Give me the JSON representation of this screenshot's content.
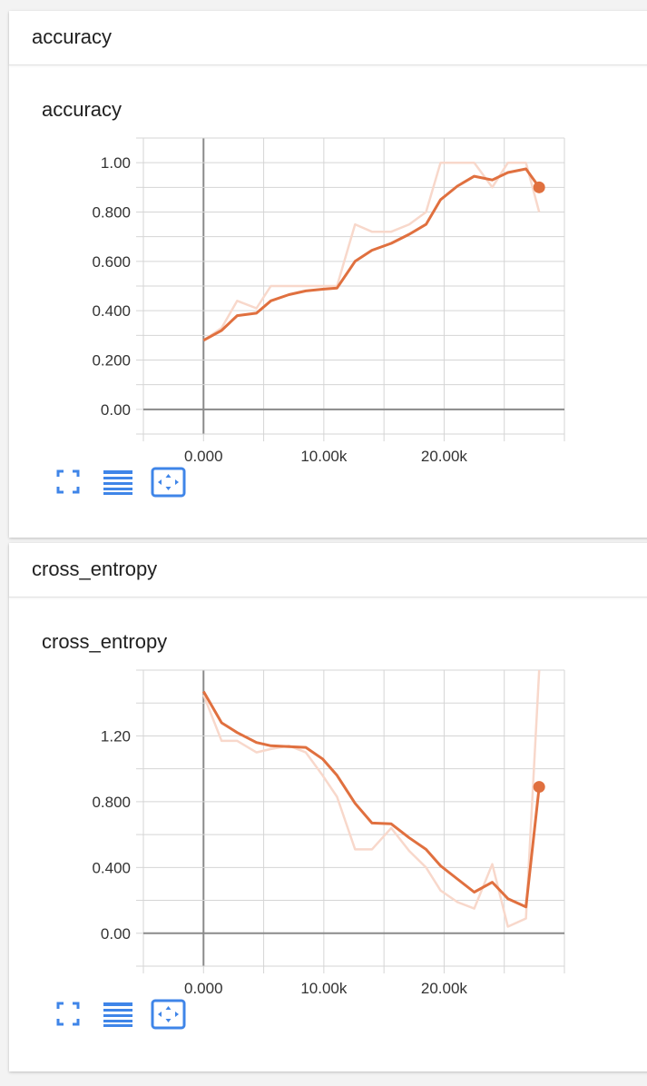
{
  "cards": [
    {
      "header": "accuracy",
      "title": "accuracy"
    },
    {
      "header": "cross_entropy",
      "title": "cross_entropy"
    }
  ],
  "colors": {
    "smoothed": "#e0703f",
    "raw": "#f8d8cb",
    "grid": "#d5d5d5",
    "axis": "#8a8a8a",
    "icon": "#3f85e8"
  },
  "toolbar_icons": [
    "fit-to-screen-icon",
    "data-table-icon",
    "expand-chart-icon"
  ],
  "chart_data": [
    {
      "type": "line",
      "title": "accuracy",
      "xlabel": "",
      "ylabel": "",
      "xlim": [
        -5000,
        30000
      ],
      "ylim": [
        -0.1,
        1.1
      ],
      "x_ticks": [
        0,
        10000,
        20000
      ],
      "x_tick_labels": [
        "0.000",
        "10.00k",
        "20.00k"
      ],
      "y_ticks": [
        0,
        0.2,
        0.4,
        0.6,
        0.8,
        1.0
      ],
      "y_tick_labels": [
        "0.00",
        "0.200",
        "0.400",
        "0.600",
        "0.800",
        "1.00"
      ],
      "grid": true,
      "series": [
        {
          "role": "raw",
          "x": [
            0,
            1500,
            2800,
            4400,
            5600,
            7100,
            8500,
            9900,
            11100,
            12600,
            14000,
            15600,
            17100,
            18500,
            19700,
            21100,
            22500,
            24000,
            25300,
            26800,
            27900
          ],
          "y": [
            0.28,
            0.33,
            0.44,
            0.41,
            0.5,
            0.5,
            0.5,
            0.5,
            0.5,
            0.75,
            0.72,
            0.72,
            0.75,
            0.8,
            1.0,
            1.0,
            1.0,
            0.9,
            1.0,
            1.0,
            0.8
          ]
        },
        {
          "role": "smoothed",
          "x": [
            0,
            1500,
            2800,
            4400,
            5600,
            7100,
            8500,
            9900,
            11100,
            12600,
            14000,
            15600,
            17100,
            18500,
            19700,
            21100,
            22500,
            24000,
            25300,
            26800,
            27900
          ],
          "y": [
            0.28,
            0.32,
            0.38,
            0.39,
            0.44,
            0.465,
            0.48,
            0.487,
            0.492,
            0.6,
            0.645,
            0.673,
            0.71,
            0.75,
            0.85,
            0.905,
            0.945,
            0.93,
            0.96,
            0.975,
            0.9
          ]
        }
      ],
      "last_point": {
        "x": 27900,
        "y": 0.9
      }
    },
    {
      "type": "line",
      "title": "cross_entropy",
      "xlabel": "",
      "ylabel": "",
      "xlim": [
        -5000,
        30000
      ],
      "ylim": [
        -0.2,
        1.6
      ],
      "x_ticks": [
        0,
        10000,
        20000
      ],
      "x_tick_labels": [
        "0.000",
        "10.00k",
        "20.00k"
      ],
      "y_ticks": [
        0,
        0.4,
        0.8,
        1.2
      ],
      "y_tick_labels": [
        "0.00",
        "0.400",
        "0.800",
        "1.20"
      ],
      "grid": true,
      "series": [
        {
          "role": "raw",
          "x": [
            0,
            1500,
            2800,
            4400,
            5600,
            7100,
            8500,
            9900,
            11100,
            12600,
            14000,
            15600,
            17100,
            18500,
            19700,
            21100,
            22500,
            24000,
            25300,
            26800,
            27900
          ],
          "y": [
            1.45,
            1.17,
            1.17,
            1.1,
            1.12,
            1.14,
            1.1,
            0.96,
            0.83,
            0.51,
            0.51,
            0.64,
            0.5,
            0.4,
            0.26,
            0.19,
            0.15,
            0.42,
            0.04,
            0.09,
            1.6
          ]
        },
        {
          "role": "smoothed",
          "x": [
            0,
            1500,
            2800,
            4400,
            5600,
            7100,
            8500,
            9900,
            11100,
            12600,
            14000,
            15600,
            17100,
            18500,
            19700,
            21100,
            22500,
            24000,
            25300,
            26800,
            27900
          ],
          "y": [
            1.47,
            1.28,
            1.22,
            1.16,
            1.14,
            1.135,
            1.13,
            1.06,
            0.96,
            0.79,
            0.67,
            0.665,
            0.58,
            0.51,
            0.41,
            0.33,
            0.25,
            0.31,
            0.21,
            0.16,
            0.89
          ]
        }
      ],
      "last_point": {
        "x": 27900,
        "y": 0.89
      }
    }
  ]
}
